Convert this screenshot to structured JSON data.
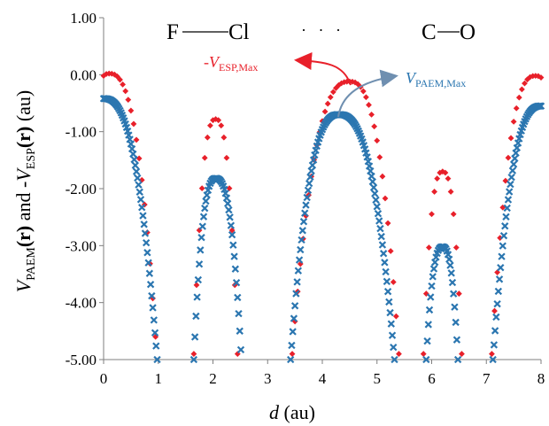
{
  "chart_data": {
    "type": "scatter",
    "molecule": {
      "atom1": "F",
      "atom2": "Cl",
      "dots": "·   ·   ·",
      "atom3": "C",
      "atom4": "O"
    },
    "xlabel": {
      "italic": "d",
      "rest": " (au)"
    },
    "ylabel": {
      "v1": "V",
      "sub1": "PAEM",
      "r1": "(r)",
      "mid": " and -",
      "v2": "V",
      "sub2": "ESP",
      "r2": "(r)",
      "unit": " (au)"
    },
    "xlim": [
      0,
      8
    ],
    "ylim": [
      -5,
      1
    ],
    "x_ticks": [
      "0",
      "1",
      "2",
      "3",
      "4",
      "5",
      "6",
      "7",
      "8"
    ],
    "y_ticks": [
      "1.00",
      "0.00",
      "-1.00",
      "-2.00",
      "-3.00",
      "-4.00",
      "-5.00"
    ],
    "annotations": {
      "esp_max": {
        "prefix": "-",
        "v": "V",
        "sub": "ESP,Max",
        "point": [
          4.45,
          -0.12
        ],
        "color": "#e8202a"
      },
      "paem_max": {
        "v": "V",
        "sub": "PAEM,Max",
        "point": [
          4.3,
          -0.68
        ],
        "color": "#2b76b0"
      }
    },
    "series": [
      {
        "marker": "diamond",
        "color": "#e8202a",
        "x_step": 0.05,
        "segments": [
          {
            "x_range": [
              0.0,
              0.95
            ],
            "peak": [
              0.1,
              0.02
            ],
            "ends": [
              0.95,
              -4.6
            ],
            "left_min": -0.02
          },
          {
            "x_range": [
              1.65,
              2.45
            ],
            "peak": [
              2.05,
              -0.78
            ],
            "ends": [
              1.65,
              -4.9
            ],
            "right_end": -4.9
          },
          {
            "x_range": [
              3.45,
              5.4
            ],
            "peak": [
              4.5,
              -0.12
            ],
            "ends": [
              3.45,
              -4.9
            ],
            "right_end": -4.9
          },
          {
            "x_range": [
              5.85,
              6.55
            ],
            "peak": [
              6.2,
              -1.7
            ],
            "ends": [
              5.85,
              -4.9
            ],
            "right_end": -4.9
          },
          {
            "x_range": [
              7.1,
              8.0
            ],
            "peak": [
              7.9,
              -0.02
            ],
            "ends": [
              7.1,
              -4.9
            ],
            "right_end": -0.05
          }
        ]
      },
      {
        "marker": "x",
        "color": "#2b76b0",
        "x_step": 0.02,
        "segments": [
          {
            "x_range": [
              0.0,
              0.98
            ],
            "peak": [
              0.0,
              -0.42
            ],
            "ends": [
              0.98,
              -5.0
            ]
          },
          {
            "x_range": [
              1.65,
              2.52
            ],
            "peak": [
              2.05,
              -1.82
            ],
            "ends": [
              1.65,
              -5.0
            ],
            "right_end": -5.0
          },
          {
            "x_range": [
              3.42,
              5.32
            ],
            "peak": [
              4.3,
              -0.7
            ],
            "ends": [
              3.42,
              -5.0
            ],
            "right_end": -5.0
          },
          {
            "x_range": [
              5.9,
              6.48
            ],
            "peak": [
              6.2,
              -3.02
            ],
            "ends": [
              5.9,
              -5.0
            ],
            "right_end": -5.0
          },
          {
            "x_range": [
              7.12,
              8.0
            ],
            "peak": [
              8.0,
              -0.55
            ],
            "ends": [
              7.12,
              -5.0
            ]
          }
        ]
      }
    ]
  }
}
